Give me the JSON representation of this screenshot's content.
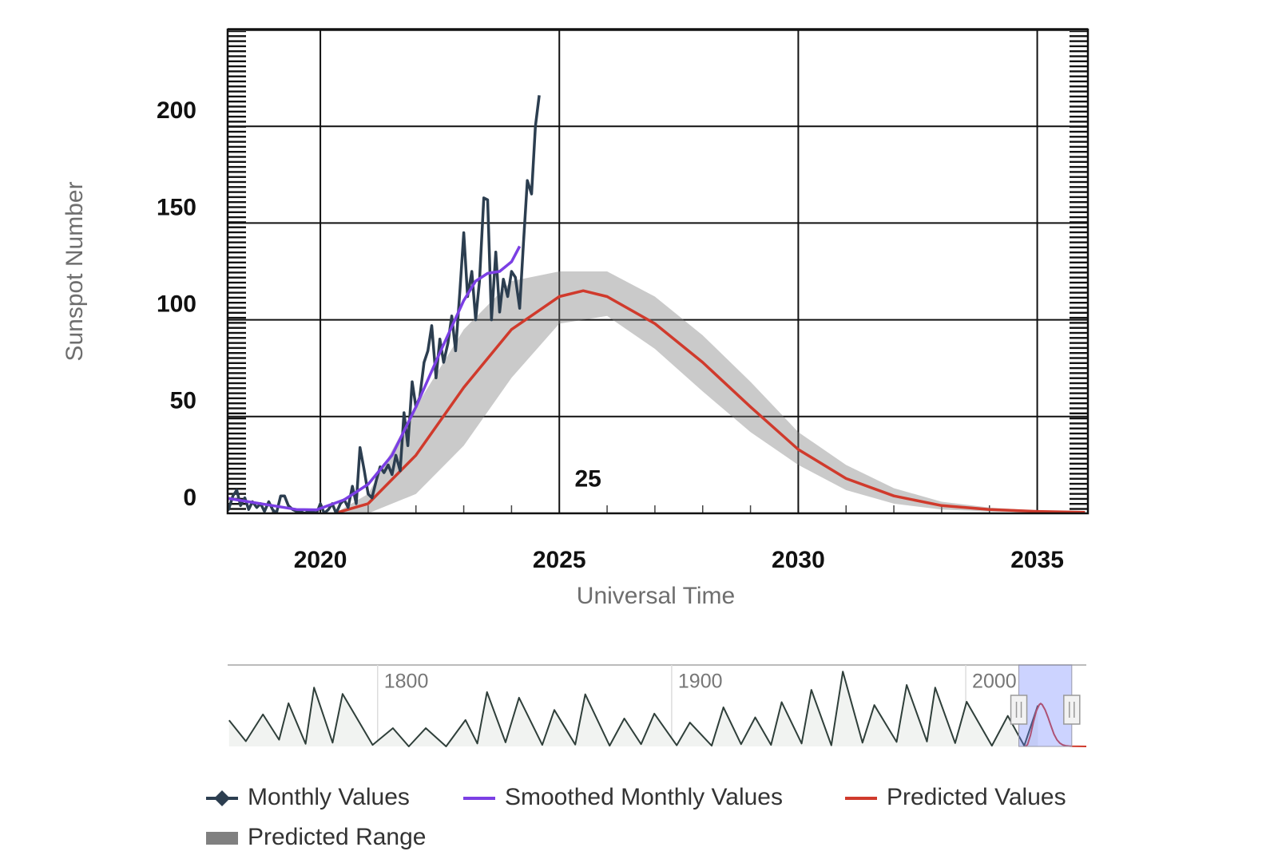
{
  "chart_data": {
    "type": "line",
    "xlabel": "Universal Time",
    "ylabel": "Sunspot Number",
    "annotation": "25",
    "xlim": [
      2018.06,
      2036.06
    ],
    "ylim": [
      0,
      250
    ],
    "xticks": [
      2020,
      2025,
      2030,
      2035
    ],
    "yticks": [
      0,
      50,
      100,
      150,
      200
    ],
    "grid": true,
    "legend": "bottom",
    "series": [
      {
        "name": "Monthly Values",
        "color": "#2c3e50",
        "x": [
          2018.0,
          2018.08,
          2018.17,
          2018.25,
          2018.33,
          2018.42,
          2018.5,
          2018.58,
          2018.67,
          2018.75,
          2018.83,
          2018.92,
          2019.0,
          2019.08,
          2019.17,
          2019.25,
          2019.33,
          2019.42,
          2019.5,
          2019.58,
          2019.67,
          2019.75,
          2019.83,
          2019.92,
          2020.0,
          2020.08,
          2020.17,
          2020.25,
          2020.33,
          2020.42,
          2020.5,
          2020.58,
          2020.67,
          2020.75,
          2020.83,
          2020.92,
          2021.0,
          2021.08,
          2021.17,
          2021.25,
          2021.33,
          2021.42,
          2021.5,
          2021.58,
          2021.67,
          2021.75,
          2021.83,
          2021.92,
          2022.0,
          2022.08,
          2022.17,
          2022.25,
          2022.33,
          2022.42,
          2022.5,
          2022.58,
          2022.67,
          2022.75,
          2022.83,
          2022.92,
          2023.0,
          2023.08,
          2023.17,
          2023.25,
          2023.33,
          2023.42,
          2023.5,
          2023.58,
          2023.67,
          2023.75,
          2023.83,
          2023.92,
          2024.0,
          2024.08,
          2024.17,
          2024.25,
          2024.33,
          2024.42,
          2024.5,
          2024.58
        ],
        "values": [
          10,
          2,
          9,
          12,
          4,
          8,
          2,
          6,
          3,
          5,
          1,
          6,
          2,
          0,
          9,
          9,
          4,
          2,
          1,
          1,
          0,
          1,
          1,
          0,
          5,
          0,
          2,
          5,
          0,
          5,
          7,
          3,
          14,
          5,
          34,
          22,
          10,
          8,
          17,
          24,
          21,
          25,
          20,
          30,
          22,
          52,
          35,
          68,
          55,
          60,
          78,
          84,
          97,
          70,
          90,
          78,
          88,
          102,
          84,
          115,
          145,
          112,
          125,
          100,
          120,
          163,
          162,
          100,
          135,
          104,
          121,
          112,
          125,
          122,
          106,
          140,
          172,
          165,
          200,
          216
        ]
      },
      {
        "name": "Smoothed Monthly Values",
        "color": "#7b3fe4",
        "x": [
          2018.0,
          2018.5,
          2019.0,
          2019.5,
          2019.92,
          2020.5,
          2021.0,
          2021.5,
          2022.0,
          2022.5,
          2023.0,
          2023.25,
          2023.5,
          2023.75,
          2024.0,
          2024.17
        ],
        "values": [
          8,
          6,
          4,
          2,
          1.8,
          7,
          15,
          30,
          55,
          83,
          110,
          120,
          124,
          125,
          130,
          138
        ]
      },
      {
        "name": "Predicted Values",
        "color": "#d03a2c",
        "x": [
          2020.3,
          2021,
          2022,
          2023,
          2024,
          2025,
          2025.5,
          2026,
          2027,
          2028,
          2029,
          2030,
          2031,
          2032,
          2033,
          2034,
          2035,
          2036
        ],
        "values": [
          0,
          5,
          30,
          65,
          95,
          112,
          115,
          112,
          98,
          78,
          55,
          33,
          18,
          9,
          4,
          2,
          1,
          0.5
        ]
      },
      {
        "name": "Predicted Range",
        "color": "#808080",
        "x": [
          2020.3,
          2021,
          2022,
          2023,
          2024,
          2025,
          2025.5,
          2026,
          2027,
          2028,
          2029,
          2030,
          2031,
          2032,
          2033,
          2034,
          2035,
          2036
        ],
        "lower": [
          0,
          0,
          10,
          35,
          70,
          98,
          100,
          102,
          85,
          63,
          42,
          25,
          12,
          5,
          2,
          1,
          0.5,
          0
        ],
        "upper": [
          0,
          10,
          55,
          95,
          120,
          125,
          125,
          125,
          112,
          92,
          68,
          42,
          25,
          13,
          6,
          3,
          1.5,
          1
        ]
      }
    ],
    "navigator": {
      "xlim": [
        1749,
        2041
      ],
      "ylim": [
        0,
        210
      ],
      "xticks": [
        1800,
        1900,
        2000
      ],
      "x": [
        1749.5,
        1755.2,
        1761,
        1766.5,
        1769.7,
        1775.5,
        1778.4,
        1784.7,
        1788.1,
        1798.3,
        1805.2,
        1810.6,
        1816.4,
        1823.3,
        1829.9,
        1833.9,
        1837.2,
        1843.5,
        1848.1,
        1856,
        1860.1,
        1867.2,
        1870.6,
        1878.9,
        1883.9,
        1889.6,
        1894.1,
        1901.7,
        1906.2,
        1913.6,
        1917.6,
        1923.6,
        1928.4,
        1933.8,
        1937.4,
        1944.2,
        1947.5,
        1954.3,
        1958.2,
        1964.9,
        1968.9,
        1976.5,
        1979.9,
        1986.8,
        1989.6,
        1996.4,
        2000.3,
        2008.9,
        2014.3,
        2019.9,
        2024.5
      ],
      "values": [
        70,
        14,
        86,
        18,
        116,
        7,
        158,
        10,
        141,
        4,
        49,
        0,
        49,
        0,
        71,
        8,
        146,
        11,
        131,
        4,
        98,
        5,
        140,
        2,
        75,
        6,
        88,
        3,
        64,
        2,
        105,
        6,
        78,
        4,
        119,
        8,
        152,
        3,
        201,
        10,
        111,
        12,
        165,
        13,
        158,
        9,
        120,
        2,
        82,
        2,
        110
      ]
    }
  }
}
